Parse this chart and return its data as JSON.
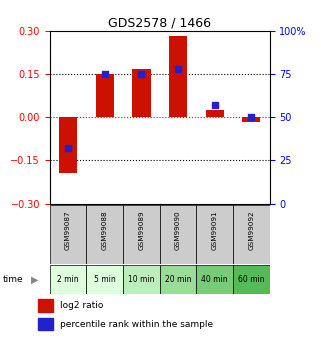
{
  "title": "GDS2578 / 1466",
  "samples": [
    "GSM99087",
    "GSM99088",
    "GSM99089",
    "GSM99090",
    "GSM99091",
    "GSM99092"
  ],
  "time_labels": [
    "2 min",
    "5 min",
    "10 min",
    "20 min",
    "40 min",
    "60 min"
  ],
  "log2_ratio": [
    -0.195,
    0.152,
    0.168,
    0.282,
    0.025,
    -0.018
  ],
  "percentile_rank": [
    32,
    75,
    75,
    78,
    57,
    50
  ],
  "ylim_left": [
    -0.3,
    0.3
  ],
  "ylim_right": [
    0,
    100
  ],
  "yticks_left": [
    -0.3,
    -0.15,
    0,
    0.15,
    0.3
  ],
  "yticks_right": [
    0,
    25,
    50,
    75,
    100
  ],
  "ytick_labels_right": [
    "0",
    "25",
    "50",
    "75",
    "100%"
  ],
  "bar_color": "#cc1100",
  "dot_color": "#2222cc",
  "hline_color": "#cc1100",
  "sample_bg": "#cccccc",
  "time_colors": [
    "#ddffdd",
    "#ddffdd",
    "#bbeebb",
    "#99dd99",
    "#77cc77",
    "#55bb55"
  ],
  "legend_red": "#cc1100",
  "legend_blue": "#2222cc",
  "bar_width": 0.5
}
